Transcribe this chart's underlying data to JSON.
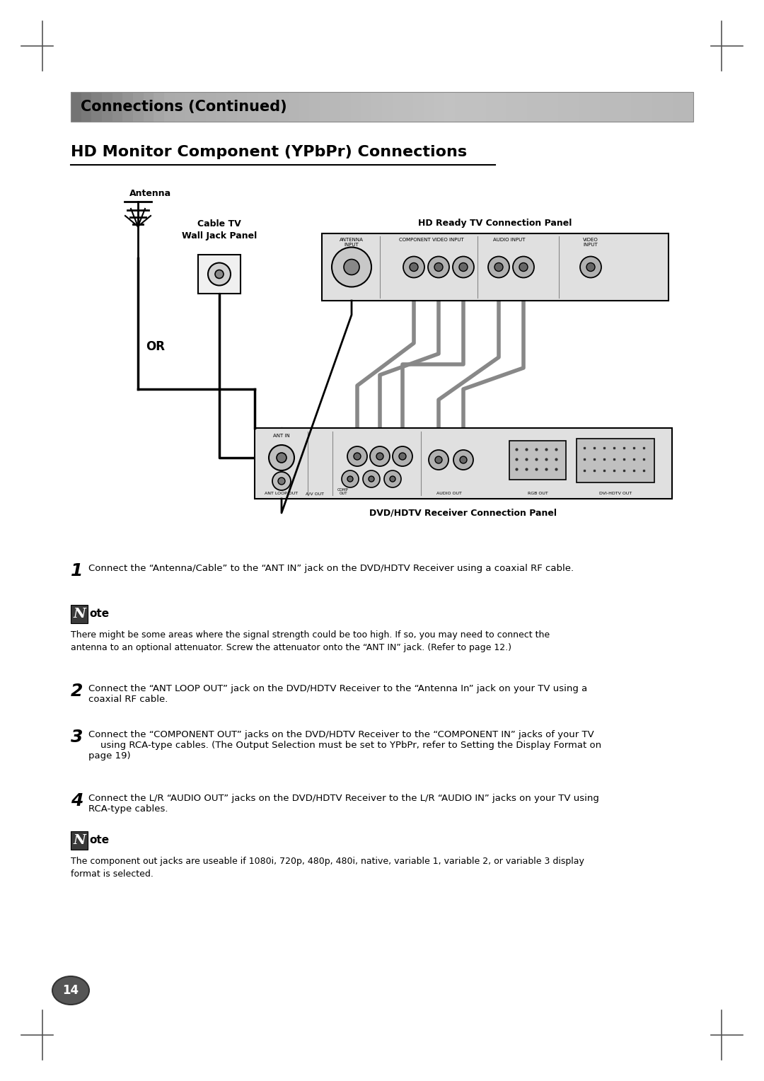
{
  "page_bg": "#ffffff",
  "header_text": "Connections (Continued)",
  "title": "HD Monitor Component (YPbPr) Connections",
  "step1_text": "Connect the “Antenna/Cable” to the “ANT IN” jack on the DVD/HDTV Receiver using a coaxial RF cable.",
  "note1_text": "There might be some areas where the signal strength could be too high. If so, you may need to connect the\nantenna to an optional attenuator. Screw the attenuator onto the “ANT IN” jack. (Refer to page 12.)",
  "step2_text": "Connect the “ANT LOOP OUT” jack on the DVD/HDTV Receiver to the “Antenna In” jack on your TV using a\ncoaxial RF cable.",
  "step3_text": "Connect the “COMPONENT OUT” jacks on the DVD/HDTV Receiver to the “COMPONENT IN” jacks of your TV\n    using RCA-type cables. (The Output Selection must be set to YPbPr, refer to Setting the Display Format on\npage 19)",
  "step4_text": "Connect the L/R “AUDIO OUT” jacks on the DVD/HDTV Receiver to the L/R “AUDIO IN” jacks on your TV using\nRCA-type cables.",
  "note2_text": "The component out jacks are useable if 1080i, 720p, 480p, 480i, native, variable 1, variable 2, or variable 3 display\nformat is selected.",
  "page_number": "14",
  "label_antenna": "Antenna",
  "label_cable_tv": "Cable TV\nWall Jack Panel",
  "label_or": "OR",
  "label_hd_ready": "HD Ready TV Connection Panel",
  "label_dvd_hdtv": "DVD/HDTV Receiver Connection Panel"
}
